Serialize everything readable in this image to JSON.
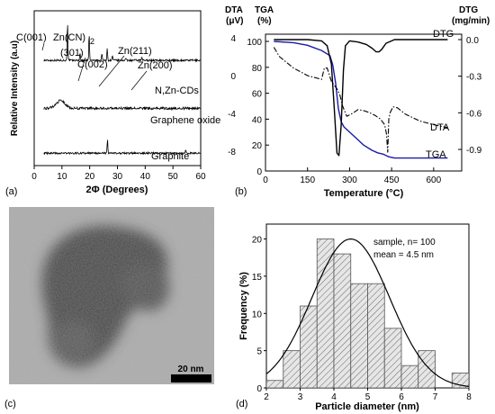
{
  "chart_data": [
    {
      "panel": "(a)",
      "type": "line",
      "title": "",
      "xlabel": "2Φ (Degrees)",
      "ylabel": "Relative Intensity (a.u)",
      "xlim": [
        0,
        60
      ],
      "xticks": [
        0,
        10,
        20,
        30,
        40,
        50,
        60
      ],
      "series": [
        {
          "name": "N,Zn-CDs",
          "baseline": 0.68,
          "noise": 0.006,
          "peaks": [
            {
              "x": 12.0,
              "h": 0.25,
              "w": 0.18
            },
            {
              "x": 16.5,
              "h": 0.05,
              "w": 0.18
            },
            {
              "x": 19.8,
              "h": 0.17,
              "w": 0.18
            },
            {
              "x": 24.4,
              "h": 0.05,
              "w": 0.18
            },
            {
              "x": 26.3,
              "h": 0.08,
              "w": 0.18
            },
            {
              "x": 28.2,
              "h": 0.03,
              "w": 0.18
            },
            {
              "x": 33.0,
              "h": 0.015,
              "w": 0.2
            },
            {
              "x": 38.8,
              "h": 0.015,
              "w": 0.2
            }
          ]
        },
        {
          "name": "Graphene oxide",
          "baseline": 0.37,
          "noise": 0.008,
          "peaks": [
            {
              "x": 9.5,
              "h": 0.05,
              "w": 2.2
            }
          ]
        },
        {
          "name": "Graphite",
          "baseline": 0.08,
          "noise": 0.006,
          "peaks": [
            {
              "x": 26.4,
              "h": 0.09,
              "w": 0.18
            },
            {
              "x": 54.6,
              "h": 0.02,
              "w": 0.18
            }
          ]
        }
      ],
      "annotations": [
        "C(001)",
        "Zn(CN)2",
        "(301)",
        "C(002)",
        "Zn(211)",
        "Zn(200)"
      ]
    },
    {
      "panel": "(b)",
      "type": "line",
      "xlabel": "Temperature (°C)",
      "xlim": [
        0,
        700
      ],
      "xticks": [
        0,
        150,
        300,
        450,
        600
      ],
      "y_axes": [
        {
          "label": "DTA (μV)",
          "ticks": [
            4,
            0,
            -4,
            -8
          ]
        },
        {
          "label": "TGA (%)",
          "range": [
            0,
            100
          ],
          "ticks": [
            100,
            80,
            60,
            40,
            20,
            0
          ]
        },
        {
          "label": "DTG (mg/min)",
          "ticks": [
            0.0,
            -0.3,
            -0.6,
            -0.9
          ]
        }
      ],
      "series": [
        {
          "name": "TGA",
          "color": "#1a1aa8",
          "axis": "TGA (%)",
          "x": [
            30,
            100,
            150,
            200,
            230,
            240,
            250,
            260,
            270,
            280,
            300,
            330,
            350,
            380,
            400,
            420,
            440,
            460,
            500,
            550,
            600,
            650
          ],
          "y": [
            100,
            99,
            97,
            93,
            89,
            82,
            68,
            48,
            38,
            34,
            30,
            24,
            20,
            16,
            14,
            13,
            11,
            10,
            10,
            10,
            10,
            10
          ]
        },
        {
          "name": "DTG",
          "color": "#000000",
          "axis": "DTG (mg/min)",
          "x": [
            30,
            150,
            200,
            220,
            235,
            245,
            255,
            262,
            270,
            278,
            285,
            300,
            330,
            360,
            380,
            395,
            405,
            415,
            430,
            460,
            500,
            550,
            600,
            650
          ],
          "y": [
            0.0,
            0.0,
            -0.01,
            -0.05,
            -0.2,
            -0.55,
            -0.93,
            -0.95,
            -0.7,
            -0.25,
            -0.05,
            -0.01,
            -0.02,
            -0.04,
            -0.07,
            -0.1,
            -0.1,
            -0.08,
            -0.03,
            0.0,
            0.0,
            0.0,
            0.0,
            0.0
          ]
        },
        {
          "name": "DTA",
          "color": "#000000",
          "axis": "DTA (μV)",
          "x": [
            30,
            50,
            100,
            150,
            200,
            210,
            220,
            235,
            245,
            255,
            265,
            275,
            290,
            310,
            330,
            350,
            370,
            390,
            410,
            425,
            432,
            436,
            440,
            445,
            455,
            470,
            500,
            550,
            600,
            650
          ],
          "y": [
            3.0,
            2.0,
            0.8,
            0.0,
            -0.4,
            0.8,
            0.8,
            -0.6,
            -1.0,
            -1.4,
            -2.0,
            -3.2,
            -4.3,
            -4.0,
            -3.6,
            -3.7,
            -3.9,
            -4.2,
            -4.6,
            -5.2,
            -6.2,
            -8.1,
            -4.6,
            -3.9,
            -3.3,
            -3.4,
            -4.1,
            -4.8,
            -5.2,
            -5.5
          ]
        }
      ]
    },
    {
      "panel": "(d)",
      "type": "bar",
      "title": "",
      "xlabel": "Particle diameter (nm)",
      "ylabel": "Frequency (%)",
      "xlim": [
        2,
        8
      ],
      "ylim": [
        0,
        22
      ],
      "xticks": [
        2,
        3,
        4,
        5,
        6,
        7,
        8
      ],
      "yticks": [
        0,
        5,
        10,
        15,
        20
      ],
      "bin_width": 0.5,
      "bins": [
        2.0,
        2.5,
        3.0,
        3.5,
        4.0,
        4.5,
        5.0,
        5.5,
        6.0,
        6.5,
        7.0,
        7.5
      ],
      "values": [
        1,
        5,
        11,
        20,
        18,
        14,
        14,
        8,
        3,
        5,
        0,
        2
      ],
      "fit": {
        "type": "gaussian",
        "mean": 4.5,
        "sigma": 1.15,
        "peak": 20
      },
      "annotations": [
        "sample, n= 100",
        "mean = 4.5 nm"
      ]
    }
  ],
  "panels": {
    "a": {
      "label": "(a)",
      "xlabel": "2Φ (Degrees)",
      "ylabel": "Relative Intensity (a.u)",
      "ticks": [
        "0",
        "10",
        "20",
        "30",
        "40",
        "50",
        "60"
      ],
      "peak_labels": [
        "C(001)",
        "Zn(CN)",
        "2",
        "(301)",
        "C(002)",
        "Zn(211)",
        "Zn(200)"
      ],
      "series_labels": [
        "N,Zn-CDs",
        "Graphene oxide",
        "Graphite"
      ]
    },
    "b": {
      "label": "(b)",
      "xlabel": "Temperature (°C)",
      "dta_label": "DTA",
      "dta_unit": "(μV)",
      "tga_label": "TGA",
      "tga_unit": "(%)",
      "dtg_label": "DTG",
      "dtg_unit": "(mg/min)",
      "xticks": [
        "0",
        "150",
        "300",
        "450",
        "600"
      ],
      "dta_ticks": [
        "4",
        "0",
        "-4",
        "-8"
      ],
      "tga_ticks": [
        "100",
        "80",
        "60",
        "40",
        "20",
        "0"
      ],
      "dtg_ticks": [
        "0.0",
        "-0.3",
        "-0.6",
        "-0.9"
      ],
      "curve_labels": {
        "dtg": "DTG",
        "dta": "DTA",
        "tga": "TGA"
      }
    },
    "c": {
      "label": "(c)",
      "scale_bar": "20 nm"
    },
    "d": {
      "label": "(d)",
      "xlabel": "Particle diameter (nm)",
      "ylabel": "Frequency (%)",
      "xticks": [
        "2",
        "3",
        "4",
        "5",
        "6",
        "7",
        "8"
      ],
      "yticks": [
        "0",
        "5",
        "10",
        "15",
        "20"
      ],
      "annotation_1": "sample, n= 100",
      "annotation_2": "mean = 4.5 nm"
    }
  },
  "colors": {
    "tga": "#1a1aa8",
    "hatch": "#666666",
    "bar_fill": "#e6e6e6",
    "tem_background": "#a9a9a9",
    "scale_bar": "#000000"
  }
}
